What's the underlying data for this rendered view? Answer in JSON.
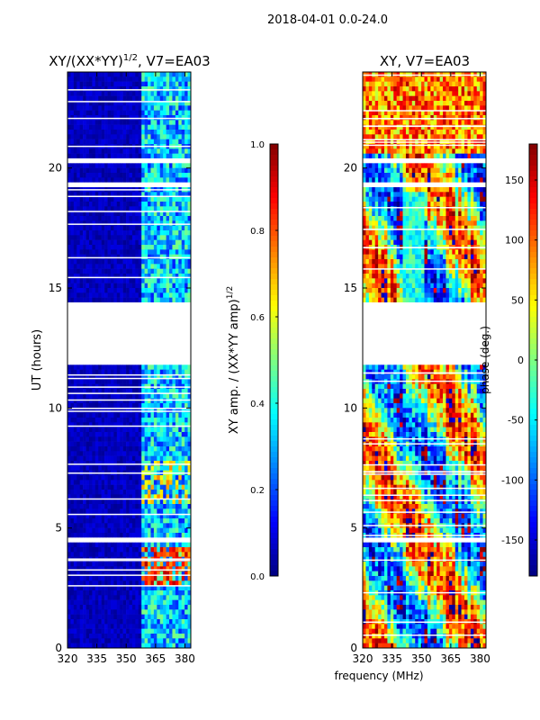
{
  "figure_title": "2018-04-01 0.0-24.0",
  "chart_data": [
    {
      "type": "heatmap",
      "title_prefix": "XY/(XX*YY)",
      "title_sup": "1/2",
      "title_suffix": ", V7=EA03",
      "xlabel": "",
      "ylabel": "UT (hours)",
      "xlim": [
        320,
        383
      ],
      "ylim": [
        0,
        24
      ],
      "xticks": [
        320,
        335,
        350,
        365,
        380
      ],
      "yticks": [
        0,
        5,
        10,
        15,
        20
      ],
      "colormap": "jet",
      "colorbar": {
        "label_main": "XY amp. / (XX*YY amp)",
        "label_sup": "1/2",
        "range": [
          0.0,
          1.0
        ],
        "ticks": [
          "0.0",
          "0.2",
          "0.4",
          "0.6",
          "0.8",
          "1.0"
        ]
      },
      "gaps_hours": [
        [
          11.75,
          14.45
        ],
        [
          19.15,
          19.4
        ],
        [
          20.15,
          20.3
        ],
        [
          4.35,
          4.5
        ]
      ]
    },
    {
      "type": "heatmap",
      "title": "XY, V7=EA03",
      "xlabel": "frequency (MHz)",
      "ylabel": "",
      "xlim": [
        320,
        383
      ],
      "ylim": [
        0,
        24
      ],
      "xticks": [
        320,
        335,
        350,
        365,
        380
      ],
      "yticks": [
        0,
        5,
        10,
        15,
        20
      ],
      "colormap": "jet",
      "colorbar": {
        "label": "phase (deg.)",
        "range": [
          -180,
          180
        ],
        "ticks": [
          "-150",
          "-100",
          "-50",
          "0",
          "50",
          "100",
          "150"
        ]
      },
      "gaps_hours": [
        [
          11.75,
          14.45
        ],
        [
          19.15,
          19.4
        ],
        [
          20.15,
          20.3
        ],
        [
          4.35,
          4.5
        ]
      ]
    }
  ]
}
